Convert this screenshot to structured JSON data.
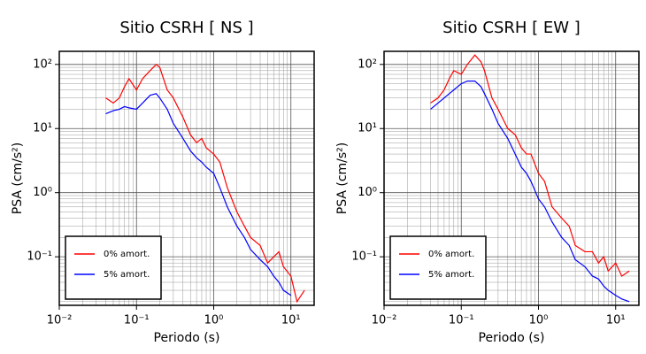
{
  "chart_data": [
    {
      "type": "line",
      "title": "Sitio CSRH [ NS ]",
      "xlabel": "Periodo (s)",
      "ylabel": "PSA (cm/s²)",
      "xscale": "log",
      "yscale": "log",
      "grid": true,
      "legend": "lower left",
      "xlim": [
        0.01,
        20
      ],
      "ylim": [
        0.0175,
        160
      ],
      "xticks": [
        {
          "value": 0.01,
          "label": "10⁻²"
        },
        {
          "value": 0.1,
          "label": "10⁻¹"
        },
        {
          "value": 1,
          "label": "10⁰"
        },
        {
          "value": 10,
          "label": "10¹"
        }
      ],
      "yticks": [
        {
          "value": 0.1,
          "label": "10⁻¹"
        },
        {
          "value": 1,
          "label": "10⁰"
        },
        {
          "value": 10,
          "label": "10¹"
        },
        {
          "value": 100,
          "label": "10²"
        }
      ],
      "x": [
        0.04,
        0.05,
        0.06,
        0.07,
        0.08,
        0.1,
        0.12,
        0.15,
        0.18,
        0.2,
        0.25,
        0.3,
        0.4,
        0.5,
        0.6,
        0.7,
        0.8,
        1.0,
        1.2,
        1.5,
        2,
        2.5,
        3,
        4,
        5,
        6,
        7,
        8,
        10,
        12,
        15
      ],
      "series": [
        {
          "name": "0% amort.",
          "color": "#ff0000",
          "values": [
            30,
            25,
            30,
            45,
            60,
            40,
            60,
            80,
            100,
            90,
            40,
            30,
            15,
            8,
            6,
            7,
            5,
            4,
            3,
            1.2,
            0.5,
            0.3,
            0.2,
            0.15,
            0.08,
            0.1,
            0.12,
            0.07,
            0.05,
            0.02,
            0.03
          ]
        },
        {
          "name": "5% amort.",
          "color": "#0000ff",
          "values": [
            17,
            19,
            20,
            22,
            21,
            20,
            25,
            33,
            35,
            30,
            20,
            12,
            7,
            4.5,
            3.5,
            3,
            2.5,
            2,
            1.2,
            0.6,
            0.3,
            0.2,
            0.13,
            0.09,
            0.07,
            0.05,
            0.04,
            0.03,
            0.025,
            null,
            null
          ]
        }
      ]
    },
    {
      "type": "line",
      "title": "Sitio CSRH [ EW ]",
      "xlabel": "Periodo (s)",
      "ylabel": "PSA (cm/s²)",
      "xscale": "log",
      "yscale": "log",
      "grid": true,
      "legend": "lower left",
      "xlim": [
        0.01,
        20
      ],
      "ylim": [
        0.0175,
        160
      ],
      "xticks": [
        {
          "value": 0.01,
          "label": "10⁻²"
        },
        {
          "value": 0.1,
          "label": "10⁻¹"
        },
        {
          "value": 1,
          "label": "10⁰"
        },
        {
          "value": 10,
          "label": "10¹"
        }
      ],
      "yticks": [
        {
          "value": 0.1,
          "label": "10⁻¹"
        },
        {
          "value": 1,
          "label": "10⁰"
        },
        {
          "value": 10,
          "label": "10¹"
        },
        {
          "value": 100,
          "label": "10²"
        }
      ],
      "x": [
        0.04,
        0.05,
        0.06,
        0.07,
        0.08,
        0.1,
        0.12,
        0.15,
        0.18,
        0.2,
        0.25,
        0.3,
        0.4,
        0.5,
        0.6,
        0.7,
        0.8,
        1.0,
        1.2,
        1.5,
        2,
        2.5,
        3,
        4,
        5,
        6,
        7,
        8,
        10,
        12,
        15
      ],
      "series": [
        {
          "name": "0% amort.",
          "color": "#ff0000",
          "values": [
            25,
            30,
            40,
            60,
            80,
            70,
            100,
            140,
            110,
            80,
            30,
            20,
            10,
            8,
            5,
            4,
            4,
            2,
            1.5,
            0.6,
            0.4,
            0.3,
            0.15,
            0.12,
            0.12,
            0.08,
            0.1,
            0.06,
            0.08,
            0.05,
            0.06
          ]
        },
        {
          "name": "5% amort.",
          "color": "#0000ff",
          "values": [
            20,
            25,
            30,
            35,
            40,
            50,
            55,
            55,
            45,
            35,
            20,
            12,
            7,
            4,
            2.5,
            2,
            1.5,
            0.8,
            0.6,
            0.35,
            0.2,
            0.15,
            0.09,
            0.07,
            0.05,
            0.045,
            0.035,
            0.03,
            0.025,
            0.022,
            0.02
          ]
        }
      ]
    }
  ]
}
